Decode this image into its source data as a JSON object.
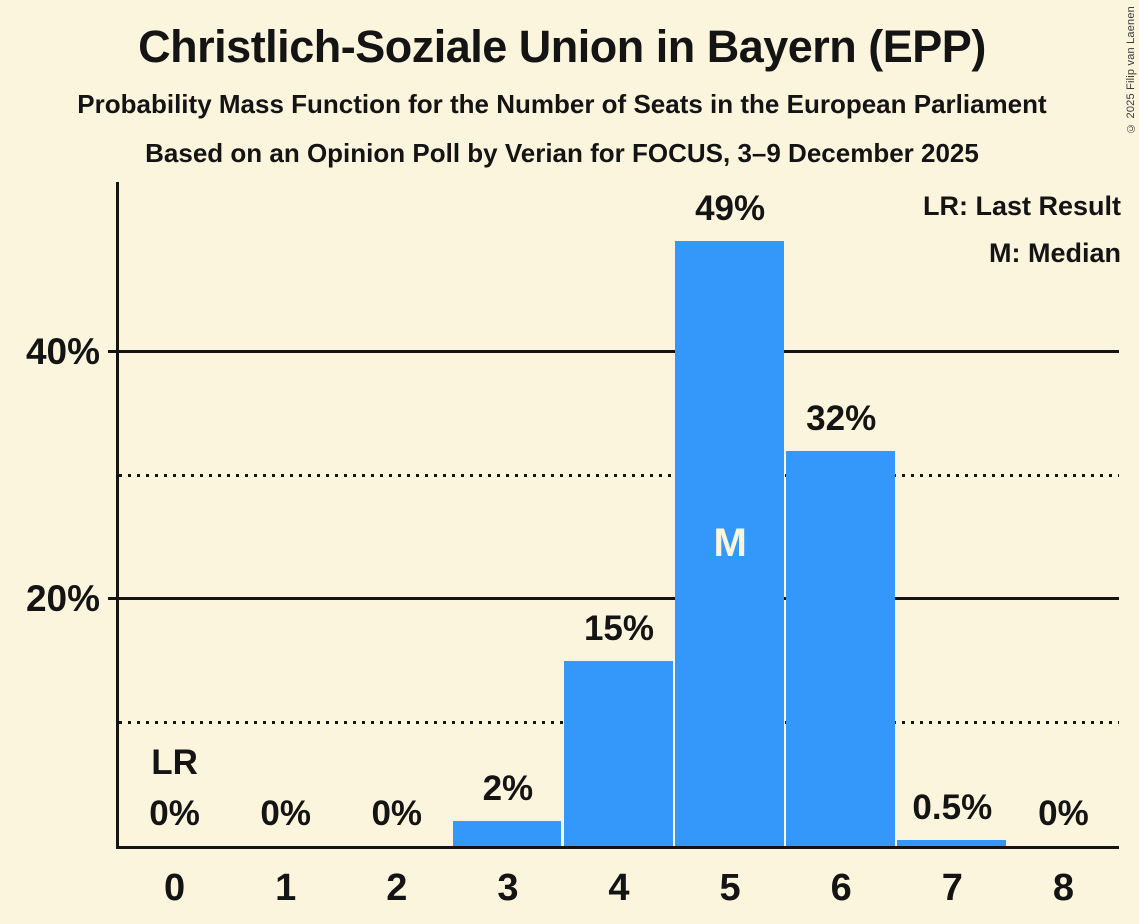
{
  "header": {
    "title": "Christlich-Soziale Union in Bayern (EPP)",
    "subtitle1": "Probability Mass Function for the Number of Seats in the European Parliament",
    "subtitle2": "Based on an Opinion Poll by Verian for FOCUS, 3–9 December 2025"
  },
  "legend": {
    "lr": "LR: Last Result",
    "m": "M: Median"
  },
  "copyright": "© 2025 Filip van Laenen",
  "colors": {
    "background": "#FCF5DE",
    "bar": "#3398FA",
    "text": "#141414",
    "median_text": "#FCF5DE"
  },
  "chart_data": {
    "type": "bar",
    "title": "Christlich-Soziale Union in Bayern (EPP)",
    "xlabel": "",
    "ylabel": "",
    "categories": [
      "0",
      "1",
      "2",
      "3",
      "4",
      "5",
      "6",
      "7",
      "8"
    ],
    "values": [
      0,
      0,
      0,
      2,
      15,
      49,
      32,
      0.5,
      0
    ],
    "value_labels": [
      "0%",
      "0%",
      "0%",
      "2%",
      "15%",
      "49%",
      "32%",
      "0.5%",
      "0%"
    ],
    "ylim": [
      0,
      53.77
    ],
    "yticks": [
      {
        "pct": 20,
        "label": "20%"
      },
      {
        "pct": 40,
        "label": "40%"
      }
    ],
    "gridlines": [
      {
        "pct": 10,
        "style": "dotted"
      },
      {
        "pct": 20,
        "style": "solid"
      },
      {
        "pct": 30,
        "style": "dotted"
      },
      {
        "pct": 40,
        "style": "solid"
      }
    ],
    "grid": "horizontal",
    "legend_position": "top-right",
    "annotations": {
      "median_seat": 5,
      "median_label": "M",
      "last_result_seat": 0,
      "last_result_label": "LR"
    }
  }
}
